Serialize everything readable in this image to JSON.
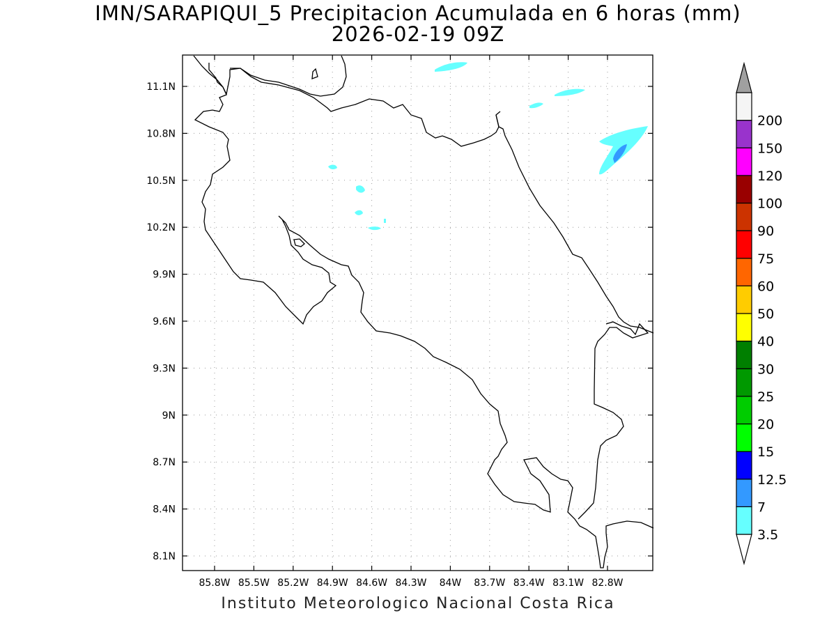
{
  "title": {
    "line1": "IMN/SARAPIQUI_5 Precipitacion Acumulada en 6 horas (mm)",
    "line2": "2026-02-19 09Z"
  },
  "footer": "Instituto Meteorologico Nacional Costa Rica",
  "map": {
    "lon_labels": [
      "85.8W",
      "85.5W",
      "85.2W",
      "84.9W",
      "84.6W",
      "84.3W",
      "84W",
      "83.7W",
      "83.4W",
      "83.1W",
      "82.8W"
    ],
    "lat_labels": [
      "11.1N",
      "10.8N",
      "10.5N",
      "10.2N",
      "9.9N",
      "9.6N",
      "9.3N",
      "9N",
      "8.7N",
      "8.4N",
      "8.1N"
    ],
    "grid": "dotted",
    "extent": {
      "lon": [
        -85.97,
        -82.55
      ],
      "lat": [
        8.0,
        11.3
      ]
    }
  },
  "colorbar": {
    "labels": [
      "3.5",
      "7",
      "12.5",
      "15",
      "20",
      "25",
      "30",
      "40",
      "50",
      "60",
      "75",
      "90",
      "100",
      "120",
      "150",
      "200"
    ],
    "colors": [
      "#66ffff",
      "#3399ff",
      "#0000ff",
      "#00ff00",
      "#00cc00",
      "#009900",
      "#007f00",
      "#ffff00",
      "#ffcc00",
      "#ff6600",
      "#ff0000",
      "#cc3300",
      "#990000",
      "#ff00ff",
      "#9933cc",
      "#f5f5f5"
    ],
    "over_color": "#a0a0a0",
    "under_color": "#ffffff"
  },
  "precip_colors": {
    "light": "#66ffff",
    "moderate": "#3399ff"
  }
}
